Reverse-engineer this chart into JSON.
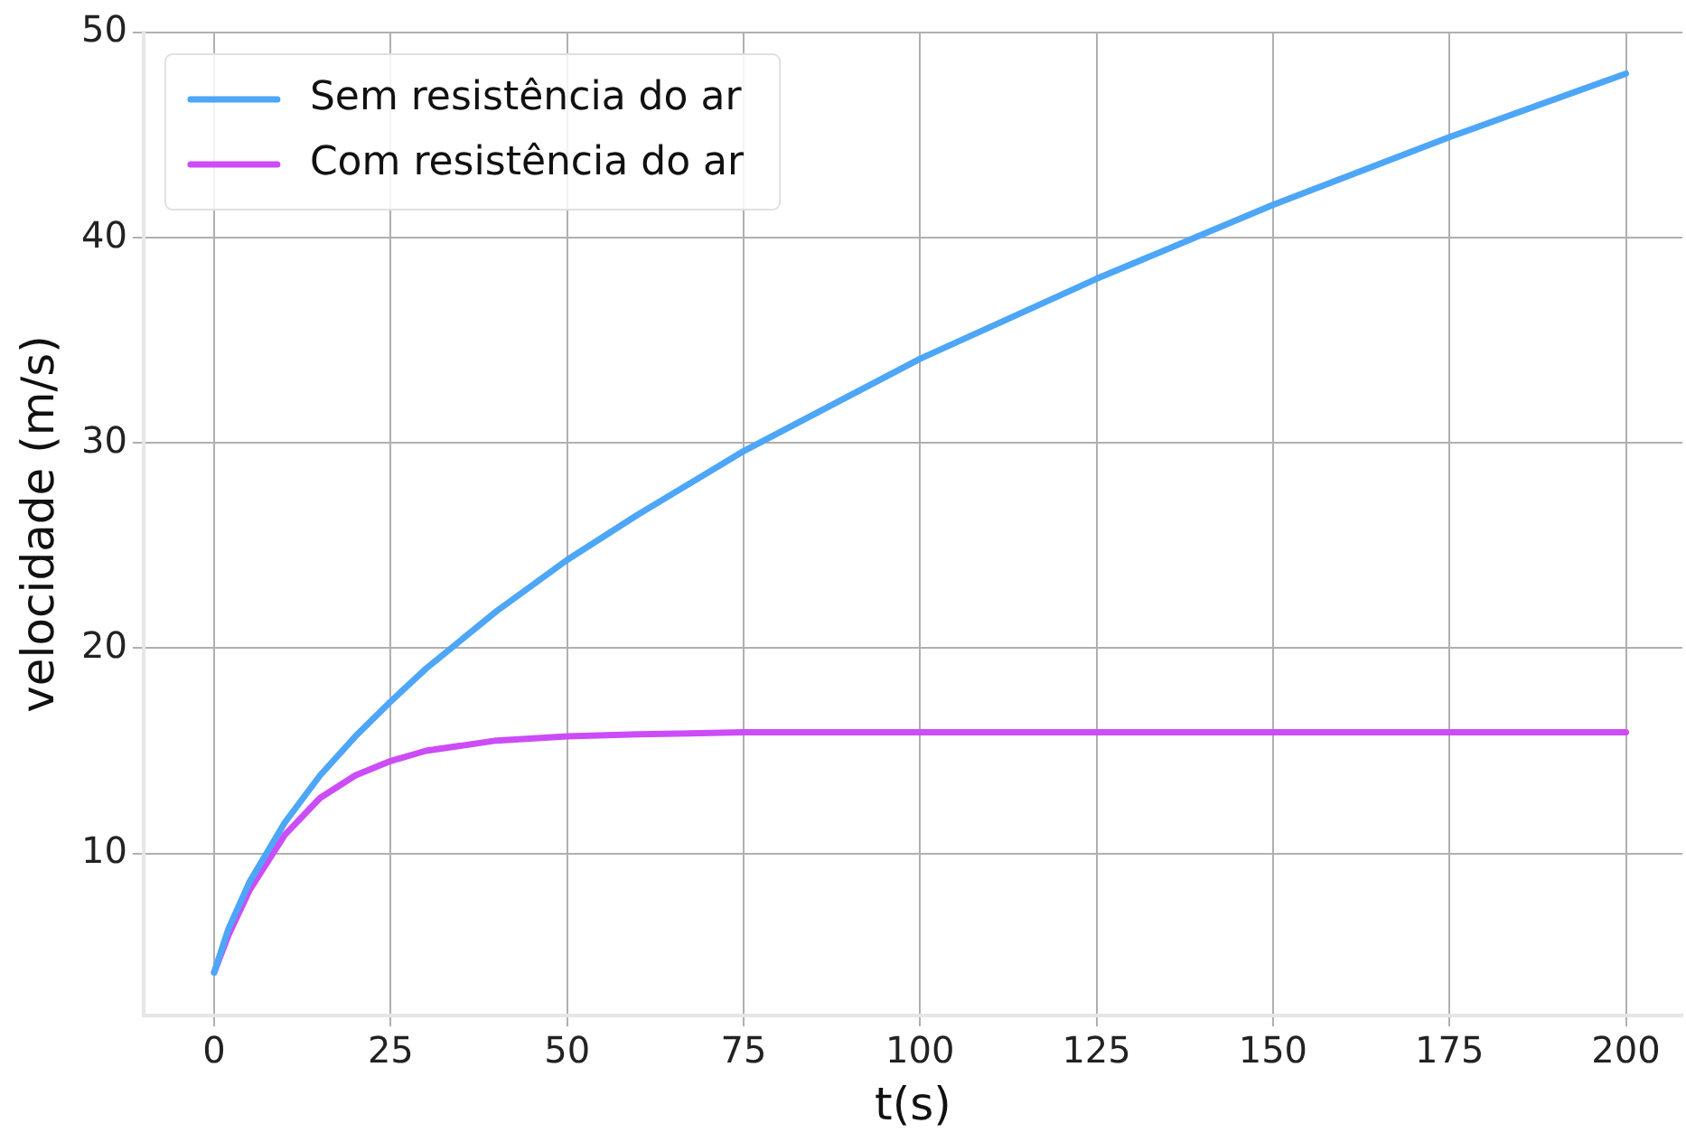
{
  "chart_data": {
    "type": "line",
    "xlabel": "t(s)",
    "ylabel": "velocidade (m/s)",
    "xlim": [
      -10,
      208
    ],
    "ylim": [
      2.1,
      50
    ],
    "xticks": [
      0,
      25,
      50,
      75,
      100,
      125,
      150,
      175,
      200
    ],
    "yticks": [
      10,
      20,
      30,
      40,
      50
    ],
    "grid": true,
    "legend": "top left",
    "marker": "none",
    "line_style": "solid",
    "series": [
      {
        "name": "Sem resistência do ar",
        "color": "#4da6f7",
        "x": [
          0,
          2,
          5,
          10,
          15,
          20,
          25,
          30,
          40,
          50,
          60,
          75,
          100,
          125,
          150,
          175,
          200
        ],
        "values": [
          4.2,
          6.3,
          8.6,
          11.5,
          13.8,
          15.7,
          17.4,
          19.0,
          21.8,
          24.3,
          26.5,
          29.6,
          34.1,
          38.0,
          41.6,
          44.9,
          48.0
        ]
      },
      {
        "name": "Com resistência do ar",
        "color": "#cc4cf7",
        "x": [
          0,
          2,
          5,
          10,
          15,
          20,
          25,
          30,
          40,
          50,
          60,
          75,
          100,
          150,
          200
        ],
        "values": [
          4.2,
          6.0,
          8.2,
          10.9,
          12.7,
          13.8,
          14.5,
          15.0,
          15.5,
          15.7,
          15.8,
          15.9,
          15.9,
          15.9,
          15.9
        ]
      }
    ]
  }
}
